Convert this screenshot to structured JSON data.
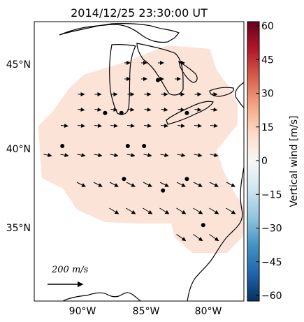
{
  "title": "2014/12/25 23:30:00 UT",
  "map": {
    "lat_labels": [
      "45°N",
      "40°N",
      "35°N"
    ],
    "lon_labels": [
      "90°W",
      "85°W",
      "80°W"
    ],
    "lat_range": [
      30.5,
      48.2
    ],
    "lon_range": [
      -94.0,
      -76.8
    ]
  },
  "colorbar": {
    "label": "Vertical wind [m/s]",
    "ticks": [
      "60",
      "45",
      "30",
      "15",
      "0",
      "−15",
      "−30",
      "−45",
      "−60"
    ],
    "range": [
      -60,
      60
    ],
    "colormap": "RdBu_r"
  },
  "scale_arrow": {
    "label": "200 m/s",
    "value": 200
  },
  "field": {
    "fill_color": "#fbe3d8",
    "vertical_wind_value": 6
  },
  "stations": [
    {
      "lat": 44.0,
      "lon": -84.0
    },
    {
      "lat": 42.0,
      "lon": -88.2
    },
    {
      "lat": 42.0,
      "lon": -86.9
    },
    {
      "lat": 42.0,
      "lon": -81.7
    },
    {
      "lat": 40.0,
      "lon": -91.6
    },
    {
      "lat": 40.0,
      "lon": -86.4
    },
    {
      "lat": 40.0,
      "lon": -85.1
    },
    {
      "lat": 38.0,
      "lon": -86.7
    },
    {
      "lat": 38.0,
      "lon": -81.7
    },
    {
      "lat": 37.3,
      "lon": -83.6
    },
    {
      "lat": 35.2,
      "lon": -80.4
    }
  ]
}
